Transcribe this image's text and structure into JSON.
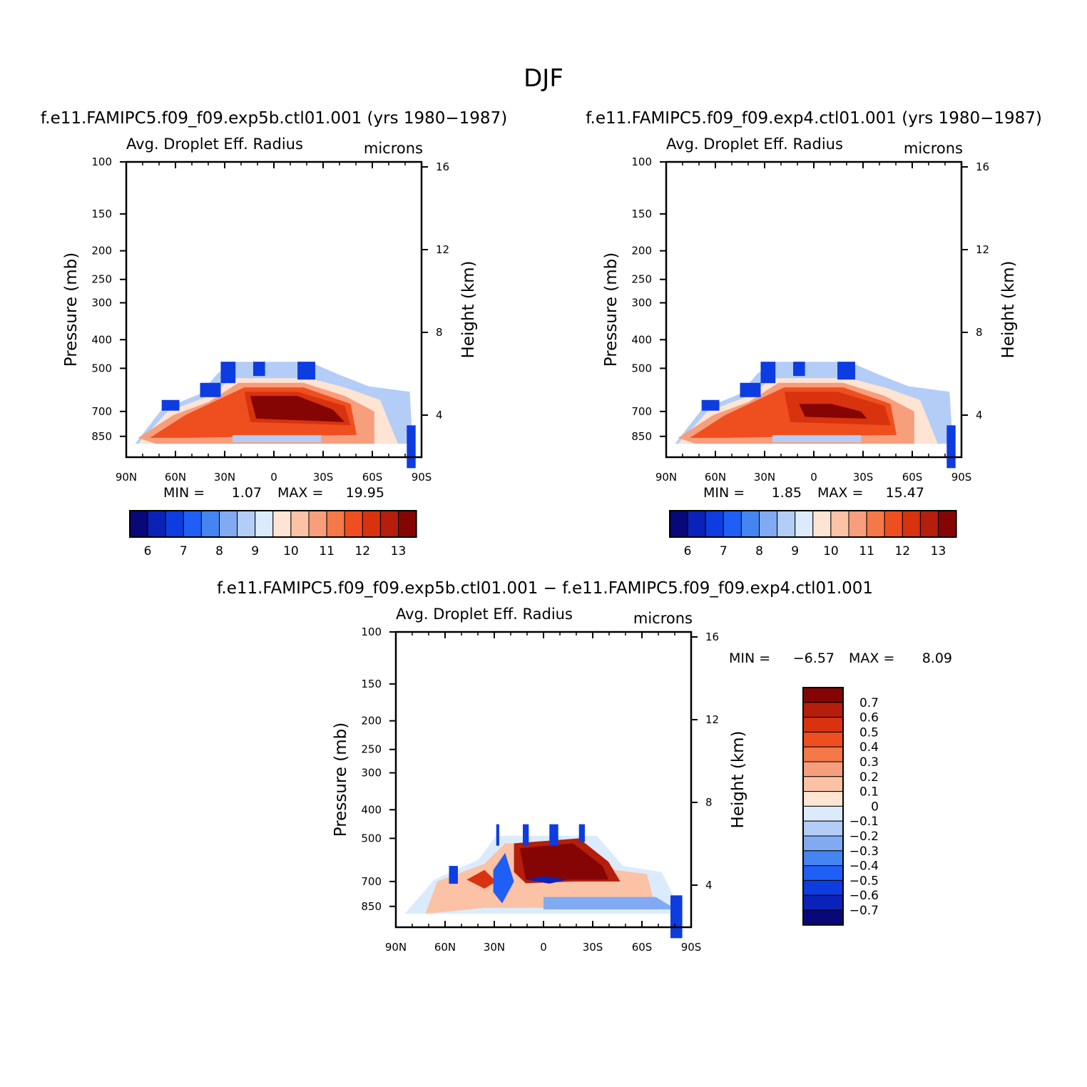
{
  "figure": {
    "title": "DJF",
    "diff_title_left": "f.e11.FAMIPC5.f09_f09.exp5b.ctl01.001",
    "diff_title_sep": "−",
    "diff_title_right": "f.e11.FAMIPC5.f09_f09.exp4.ctl01.001"
  },
  "colors": {
    "seq": [
      "#08087a",
      "#0a22b8",
      "#0d3ce0",
      "#1f5ff5",
      "#4585f2",
      "#82aaf2",
      "#b3cdf7",
      "#dcebfc",
      "#fde4d3",
      "#fbc2a5",
      "#f79e7d",
      "#f47848",
      "#ef4f1f",
      "#d8330e",
      "#b41e0b",
      "#850505"
    ],
    "div": [
      "#850505",
      "#b41e0b",
      "#d8330e",
      "#ef4f1f",
      "#f47848",
      "#f79e7d",
      "#fbc2a5",
      "#fde4d3",
      "#dcebfc",
      "#b3cdf7",
      "#82aaf2",
      "#4585f2",
      "#1f5ff5",
      "#0d3ce0",
      "#0a22b8",
      "#08087a"
    ]
  },
  "chart_data": [
    {
      "type": "heatmap",
      "title": "f.e11.FAMIPC5.f09_f09.exp5b.ctl01.001 (yrs 1980−1987)",
      "left_string": "Avg. Droplet Eff. Radius",
      "right_string": "microns",
      "x_ticks": [
        "90N",
        "60N",
        "30N",
        "0",
        "30S",
        "60S",
        "90S"
      ],
      "y_label": "Pressure (mb)",
      "y_ticks": [
        "100",
        "150",
        "200",
        "250",
        "300",
        "400",
        "500",
        "700",
        "850"
      ],
      "y2_label": "Height (km)",
      "y2_ticks": [
        "16",
        "12",
        "8",
        "4"
      ],
      "min_label": "MIN =",
      "min_value": "1.07",
      "max_label": "MAX =",
      "max_value": "19.95",
      "colorbar_labels": [
        "6",
        "7",
        "8",
        "9",
        "10",
        "11",
        "12",
        "13"
      ],
      "units": "microns"
    },
    {
      "type": "heatmap",
      "title": "f.e11.FAMIPC5.f09_f09.exp4.ctl01.001 (yrs 1980−1987)",
      "left_string": "Avg. Droplet Eff. Radius",
      "right_string": "microns",
      "x_ticks": [
        "90N",
        "60N",
        "30N",
        "0",
        "30S",
        "60S",
        "90S"
      ],
      "y_label": "Pressure (mb)",
      "y_ticks": [
        "100",
        "150",
        "200",
        "250",
        "300",
        "400",
        "500",
        "700",
        "850"
      ],
      "y2_label": "Height (km)",
      "y2_ticks": [
        "16",
        "12",
        "8",
        "4"
      ],
      "min_label": "MIN =",
      "min_value": "1.85",
      "max_label": "MAX =",
      "max_value": "15.47",
      "colorbar_labels": [
        "6",
        "7",
        "8",
        "9",
        "10",
        "11",
        "12",
        "13"
      ],
      "units": "microns"
    },
    {
      "type": "heatmap",
      "title": "",
      "left_string": "Avg. Droplet Eff. Radius",
      "right_string": "microns",
      "x_ticks": [
        "90N",
        "60N",
        "30N",
        "0",
        "30S",
        "60S",
        "90S"
      ],
      "y_label": "Pressure (mb)",
      "y_ticks": [
        "100",
        "150",
        "200",
        "250",
        "300",
        "400",
        "500",
        "700",
        "850"
      ],
      "y2_label": "Height (km)",
      "y2_ticks": [
        "16",
        "12",
        "8",
        "4"
      ],
      "min_label": "MIN =",
      "min_value": "−6.57",
      "max_label": "MAX =",
      "max_value": "8.09",
      "colorbar_labels": [
        "0.7",
        "0.6",
        "0.5",
        "0.4",
        "0.3",
        "0.2",
        "0.1",
        "0",
        "−0.1",
        "−0.2",
        "−0.3",
        "−0.4",
        "−0.5",
        "−0.6",
        "−0.7"
      ],
      "units": "microns"
    }
  ]
}
